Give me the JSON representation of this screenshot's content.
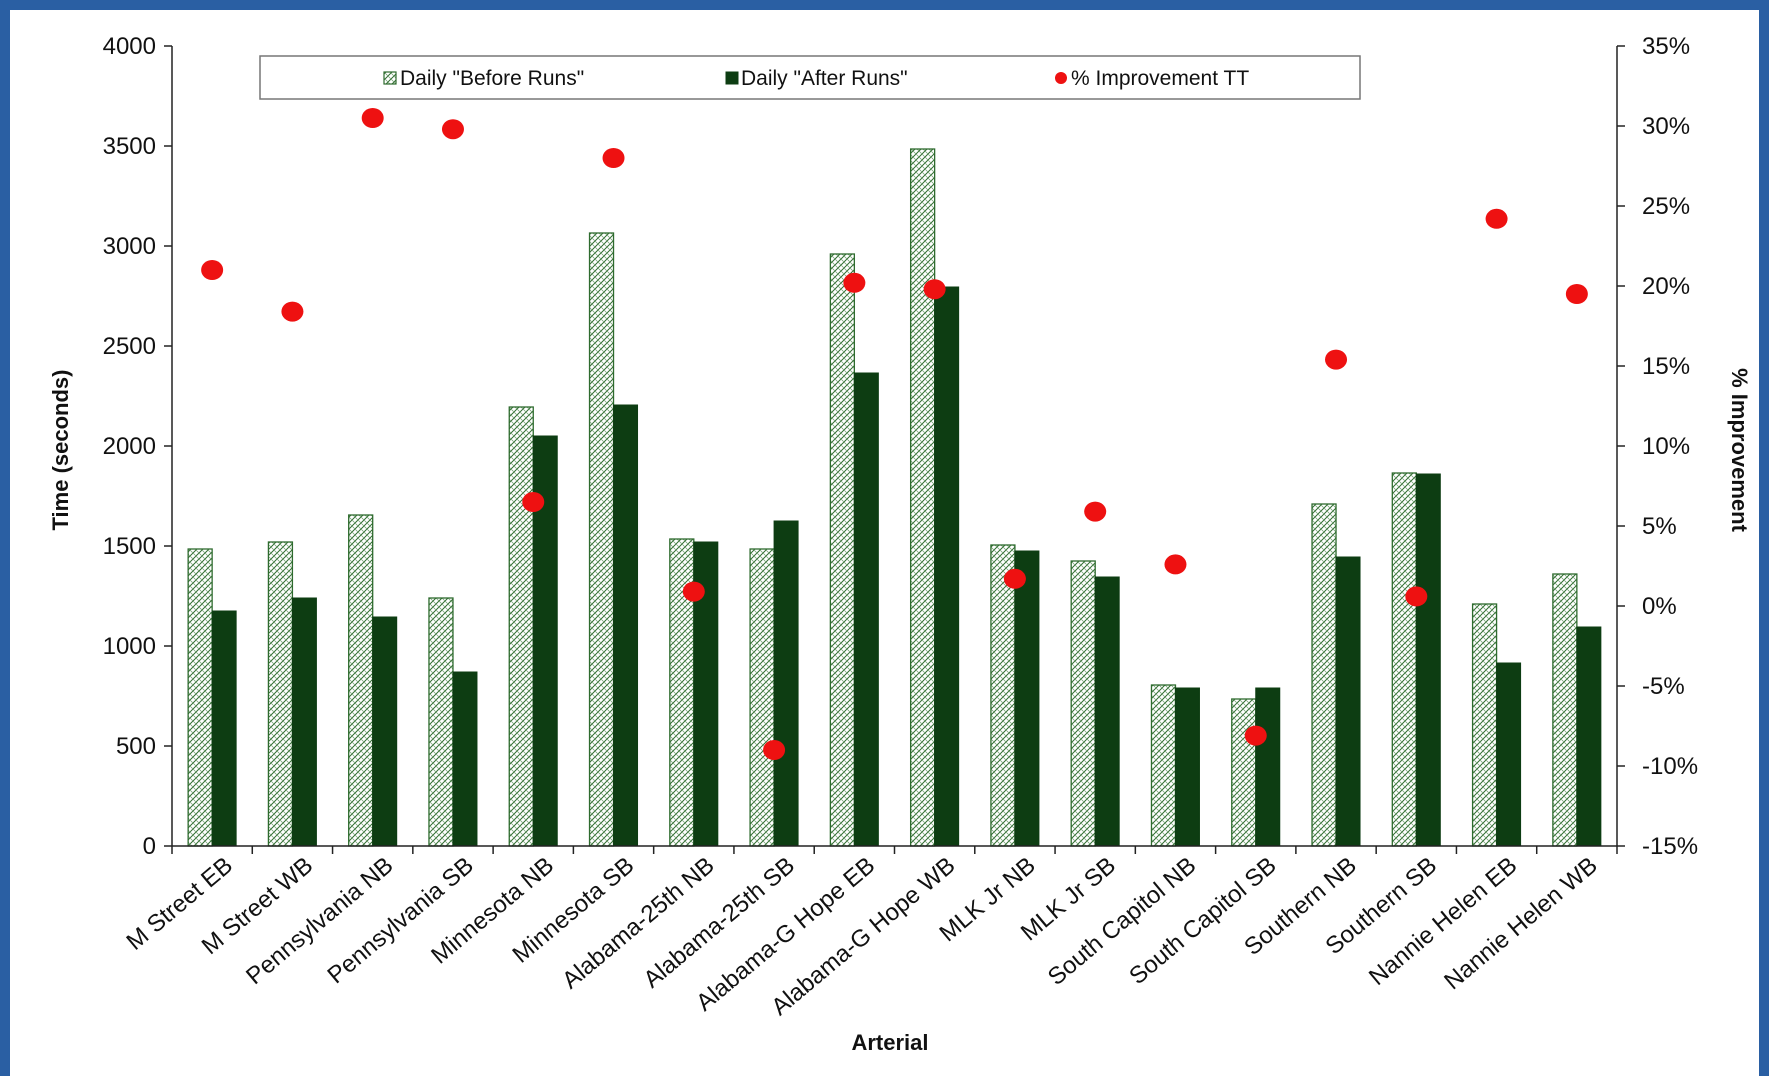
{
  "chart_data": {
    "type": "bar",
    "categories": [
      "M Street EB",
      "M Street WB",
      "Pennsylvania NB",
      "Pennsylvania SB",
      "Minnesota NB",
      "Minnesota SB",
      "Alabama-25th NB",
      "Alabama-25th SB",
      "Alabama-G Hope EB",
      "Alabama-G Hope WB",
      "MLK Jr NB",
      "MLK Jr SB",
      "South Capitol NB",
      "South Capitol SB",
      "Southern NB",
      "Southern SB",
      "Nannie Helen EB",
      "Nannie Helen WB"
    ],
    "series": [
      {
        "name": "Daily \"Before Runs\"",
        "axis": "left",
        "pattern": "hatched",
        "values": [
          1485,
          1520,
          1655,
          1240,
          2195,
          3065,
          1535,
          1485,
          2960,
          3485,
          1505,
          1425,
          805,
          735,
          1710,
          1865,
          1210,
          1360
        ]
      },
      {
        "name": "Daily \"After Runs\"",
        "axis": "left",
        "pattern": "solid",
        "values": [
          1175,
          1240,
          1145,
          870,
          2050,
          2205,
          1520,
          1625,
          2365,
          2795,
          1475,
          1345,
          790,
          790,
          1445,
          1860,
          915,
          1095
        ]
      },
      {
        "name": "% Improvement TT",
        "axis": "right",
        "marker": "dot",
        "values": [
          21.0,
          18.4,
          30.5,
          29.8,
          6.5,
          28.0,
          0.9,
          -9.0,
          20.2,
          19.8,
          1.7,
          5.9,
          2.6,
          -8.1,
          15.4,
          0.6,
          24.2,
          19.5
        ]
      }
    ],
    "xlabel": "Arterial",
    "ylabel": "Time (seconds)",
    "y2label": "% Improvement",
    "ylim": [
      0,
      4000
    ],
    "y2lim": [
      -15,
      35
    ],
    "yticks": [
      "0",
      "500",
      "1000",
      "1500",
      "2000",
      "2500",
      "3000",
      "3500",
      "4000"
    ],
    "y2ticks": [
      "-15%",
      "-10%",
      "-5%",
      "0%",
      "5%",
      "10%",
      "15%",
      "20%",
      "25%",
      "30%",
      "35%"
    ],
    "grid": false,
    "legend": "top",
    "colors": {
      "before_hatch": "#2e6b2e",
      "after_fill": "#0d3d12",
      "improvement_dot": "#ee1111",
      "frame": "#2a5fa3"
    }
  }
}
